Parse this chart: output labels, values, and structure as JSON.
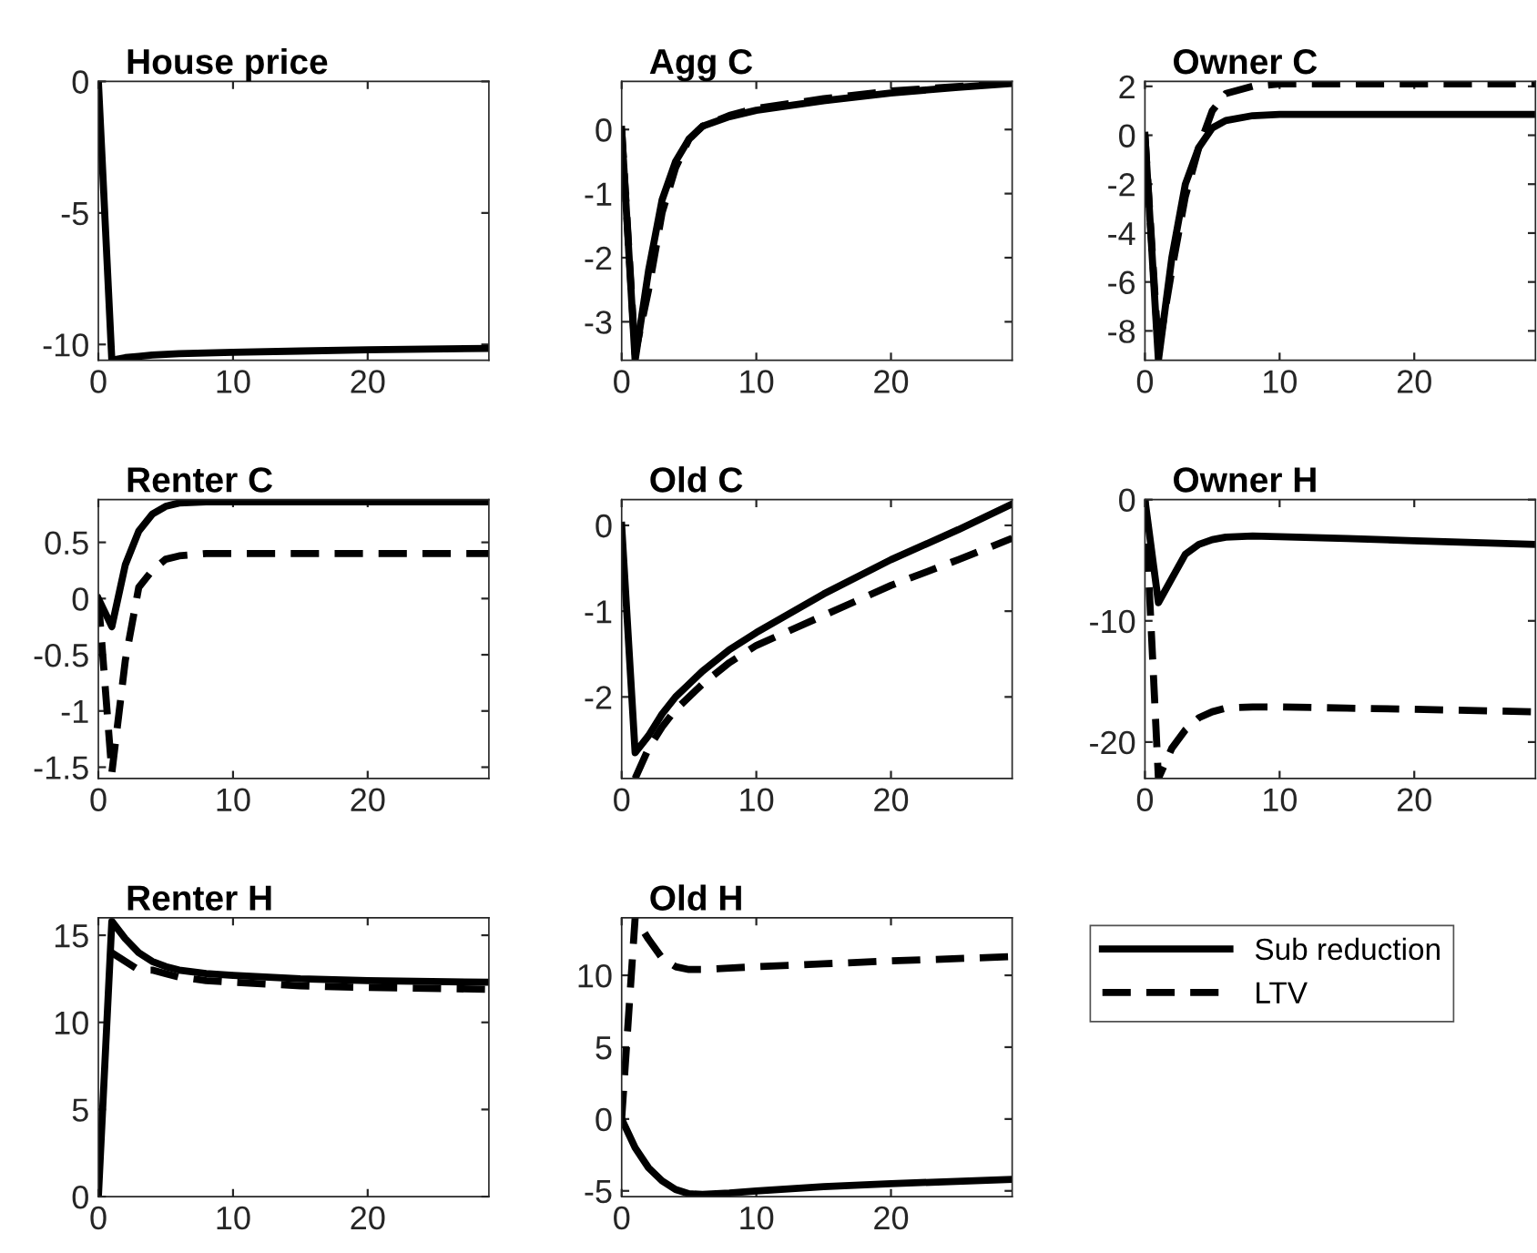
{
  "chart_data": [
    {
      "type": "line",
      "title": "House price",
      "xlim": [
        0,
        29
      ],
      "xticks": [
        0,
        10,
        20
      ],
      "ylim": [
        -10.6,
        0
      ],
      "yticks": [
        -10,
        -5,
        0
      ],
      "series": [
        {
          "color": "#000000",
          "line_style": "solid",
          "x": [
            0,
            1,
            2,
            3,
            4,
            6,
            10,
            15,
            20,
            29
          ],
          "values": [
            0,
            -10.6,
            -10.5,
            -10.45,
            -10.4,
            -10.35,
            -10.3,
            -10.25,
            -10.2,
            -10.15
          ]
        }
      ]
    },
    {
      "type": "line",
      "title": "Agg C",
      "xlim": [
        0,
        29
      ],
      "xticks": [
        0,
        10,
        20
      ],
      "ylim": [
        -3.6,
        0.75
      ],
      "yticks": [
        -3,
        -2,
        -1,
        0
      ],
      "series": [
        {
          "color": "#000000",
          "line_style": "solid",
          "x": [
            0,
            1,
            2,
            3,
            4,
            5,
            6,
            8,
            10,
            15,
            20,
            25,
            29
          ],
          "values": [
            0,
            -3.6,
            -2.2,
            -1.1,
            -0.5,
            -0.15,
            0.05,
            0.2,
            0.3,
            0.45,
            0.57,
            0.66,
            0.72
          ]
        },
        {
          "color": "#000000",
          "line_style": "dashed",
          "x": [
            0,
            1,
            2,
            3,
            4,
            5,
            6,
            8,
            10,
            15,
            20,
            29
          ],
          "values": [
            0,
            -3.5,
            -2.5,
            -1.3,
            -0.6,
            -0.15,
            0.05,
            0.22,
            0.33,
            0.48,
            0.6,
            0.73
          ]
        }
      ]
    },
    {
      "type": "line",
      "title": "Owner C",
      "xlim": [
        0,
        29
      ],
      "xticks": [
        0,
        10,
        20
      ],
      "ylim": [
        -9.2,
        2.2
      ],
      "yticks": [
        -8,
        -6,
        -4,
        -2,
        0,
        2
      ],
      "series": [
        {
          "color": "#000000",
          "line_style": "solid",
          "x": [
            0,
            1,
            2,
            3,
            4,
            5,
            6,
            8,
            10,
            29
          ],
          "values": [
            0,
            -9.2,
            -5,
            -2,
            -0.5,
            0.3,
            0.6,
            0.8,
            0.85,
            0.85
          ]
        },
        {
          "color": "#000000",
          "line_style": "dashed",
          "x": [
            0,
            1,
            2,
            3,
            4,
            5,
            6,
            8,
            10,
            29
          ],
          "values": [
            0,
            -8.8,
            -5.5,
            -2.5,
            -0.5,
            1.0,
            1.7,
            2.0,
            2.1,
            2.1
          ]
        }
      ]
    },
    {
      "type": "line",
      "title": "Renter C",
      "xlim": [
        0,
        29
      ],
      "xticks": [
        0,
        10,
        20
      ],
      "ylim": [
        -1.6,
        0.88
      ],
      "yticks": [
        -1.5,
        -1,
        -0.5,
        0,
        0.5
      ],
      "series": [
        {
          "color": "#000000",
          "line_style": "solid",
          "x": [
            0,
            1,
            2,
            3,
            4,
            5,
            6,
            8,
            29
          ],
          "values": [
            0,
            -0.25,
            0.3,
            0.6,
            0.75,
            0.82,
            0.85,
            0.86,
            0.86
          ]
        },
        {
          "color": "#000000",
          "line_style": "dashed",
          "x": [
            0,
            1,
            2,
            3,
            4,
            5,
            6,
            8,
            29
          ],
          "values": [
            0,
            -1.55,
            -0.55,
            0.1,
            0.25,
            0.35,
            0.38,
            0.4,
            0.4
          ]
        }
      ]
    },
    {
      "type": "line",
      "title": "Old C",
      "xlim": [
        0,
        29
      ],
      "xticks": [
        0,
        10,
        20
      ],
      "ylim": [
        -2.95,
        0.3
      ],
      "yticks": [
        -2,
        -1,
        0
      ],
      "series": [
        {
          "color": "#000000",
          "line_style": "solid",
          "x": [
            0,
            1,
            2,
            3,
            4,
            5,
            6,
            8,
            10,
            15,
            20,
            25,
            29
          ],
          "values": [
            0,
            -2.65,
            -2.45,
            -2.2,
            -2.0,
            -1.85,
            -1.7,
            -1.45,
            -1.25,
            -0.8,
            -0.4,
            -0.05,
            0.25
          ]
        },
        {
          "color": "#000000",
          "line_style": "dashed",
          "x": [
            1,
            2,
            3,
            4,
            5,
            6,
            8,
            10,
            15,
            20,
            25,
            29
          ],
          "values": [
            -2.95,
            -2.6,
            -2.35,
            -2.15,
            -2.0,
            -1.85,
            -1.6,
            -1.4,
            -1.05,
            -0.7,
            -0.4,
            -0.15
          ]
        }
      ]
    },
    {
      "type": "line",
      "title": "Owner H",
      "xlim": [
        0,
        29
      ],
      "xticks": [
        0,
        10,
        20
      ],
      "ylim": [
        -23,
        0
      ],
      "yticks": [
        -20,
        -10,
        0
      ],
      "series": [
        {
          "color": "#000000",
          "line_style": "solid",
          "x": [
            0,
            1,
            2,
            3,
            4,
            5,
            6,
            8,
            10,
            15,
            20,
            29
          ],
          "values": [
            0,
            -8.5,
            -6.5,
            -4.5,
            -3.7,
            -3.3,
            -3.1,
            -3.0,
            -3.05,
            -3.2,
            -3.4,
            -3.7
          ]
        },
        {
          "color": "#000000",
          "line_style": "dashed",
          "x": [
            0,
            1,
            2,
            3,
            4,
            5,
            6,
            8,
            10,
            15,
            20,
            29
          ],
          "values": [
            0,
            -23,
            -20.5,
            -19,
            -18,
            -17.5,
            -17.2,
            -17.1,
            -17.1,
            -17.2,
            -17.3,
            -17.5
          ]
        }
      ]
    },
    {
      "type": "line",
      "title": "Renter H",
      "xlim": [
        0,
        29
      ],
      "xticks": [
        0,
        10,
        20
      ],
      "ylim": [
        0,
        16
      ],
      "yticks": [
        0,
        5,
        10,
        15
      ],
      "series": [
        {
          "color": "#000000",
          "line_style": "solid",
          "x": [
            0,
            1,
            2,
            3,
            4,
            5,
            6,
            8,
            10,
            15,
            20,
            29
          ],
          "values": [
            0,
            15.8,
            14.8,
            14,
            13.5,
            13.2,
            13,
            12.8,
            12.7,
            12.5,
            12.4,
            12.3
          ]
        },
        {
          "color": "#000000",
          "line_style": "dashed",
          "x": [
            1,
            2,
            3,
            4,
            5,
            6,
            8,
            10,
            15,
            20,
            29
          ],
          "values": [
            14,
            13.5,
            13,
            13,
            12.8,
            12.6,
            12.4,
            12.3,
            12.1,
            12.0,
            11.9
          ]
        }
      ]
    },
    {
      "type": "line",
      "title": "Old H",
      "xlim": [
        0,
        29
      ],
      "xticks": [
        0,
        10,
        20
      ],
      "ylim": [
        -5.4,
        14
      ],
      "yticks": [
        -5,
        0,
        5,
        10
      ],
      "legend": "right",
      "series": [
        {
          "name": "Sub reduction",
          "color": "#000000",
          "line_style": "solid",
          "x": [
            0,
            1,
            2,
            3,
            4,
            5,
            6,
            8,
            10,
            15,
            20,
            29
          ],
          "values": [
            0,
            -2,
            -3.4,
            -4.3,
            -4.9,
            -5.2,
            -5.25,
            -5.15,
            -5.0,
            -4.7,
            -4.5,
            -4.2
          ]
        },
        {
          "name": "LTV",
          "color": "#000000",
          "line_style": "dashed",
          "x": [
            0,
            1,
            2,
            3,
            4,
            5,
            6,
            8,
            10,
            15,
            20,
            29
          ],
          "values": [
            0,
            14,
            12.5,
            11.2,
            10.6,
            10.4,
            10.4,
            10.5,
            10.6,
            10.8,
            11.0,
            11.3
          ]
        }
      ]
    }
  ]
}
